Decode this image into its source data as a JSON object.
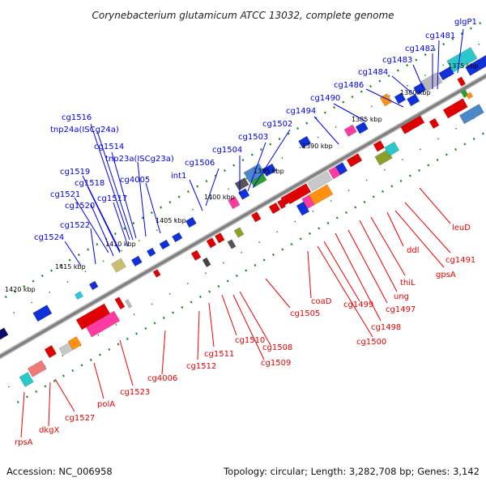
{
  "title": "Corynebacterium glutamicum ATCC 13032, complete genome",
  "footer": {
    "accession": "Accession: NC_006958",
    "summary": "Topology: circular; Length: 3,282,708 bp; Genes: 3,142"
  },
  "kbp_labels": [
    "1420 kbp",
    "1415 kbp",
    "1410 kbp",
    "1405 kbp",
    "1400 kbp",
    "1395 kbp",
    "1390 kbp",
    "1385 kbp",
    "1380 kbp",
    "1375 kbp"
  ],
  "genes_top": [
    "glgP1",
    "cg1481",
    "cg1482",
    "cg1483",
    "cg1484",
    "cg1486",
    "cg1490",
    "cg1494",
    "cg1502",
    "cg1503",
    "cg1504",
    "cg1506",
    "int1",
    "cg1516",
    "tnp24a(ISCg24a)",
    "cg1514",
    "tnp23a(ISCg23a)",
    "cg4005",
    "cg1519",
    "cg1518",
    "cg1521",
    "cg1520",
    "cg1517",
    "cg1522",
    "cg1524"
  ],
  "genes_bottom": [
    "leuD",
    "cg1491",
    "gpsA",
    "ddl",
    "thiL",
    "ung",
    "cg1497",
    "cg1498",
    "cg1499",
    "cg1500",
    "coaD",
    "cg1505",
    "cg1508",
    "cg1509",
    "cg1510",
    "cg1511",
    "cg1512",
    "cg4006",
    "cg1523",
    "polA",
    "cg1527",
    "dkgX",
    "rpsA"
  ],
  "colors": {
    "forward_strand": "#0000ee",
    "reverse_strand": "#ee0000",
    "backbone": "#7a7a7a",
    "ticks": "#1a8a1a"
  }
}
